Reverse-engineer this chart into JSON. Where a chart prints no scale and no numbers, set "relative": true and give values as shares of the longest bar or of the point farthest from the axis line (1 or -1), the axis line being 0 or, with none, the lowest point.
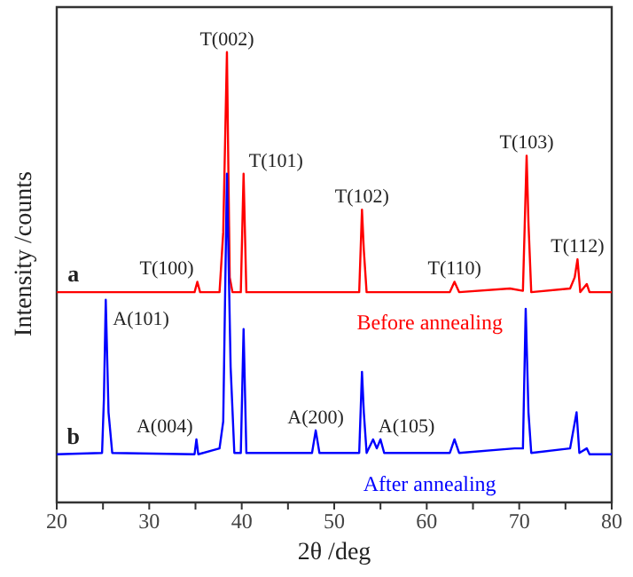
{
  "chart_data": {
    "type": "line",
    "relative": true,
    "xlabel": "2θ /deg",
    "ylabel": "Intensity /counts",
    "xlim": [
      20,
      80
    ],
    "xticks": [
      20,
      {
        "value": 25,
        "label": null
      },
      30,
      {
        "value": 35,
        "label": null
      },
      40,
      {
        "value": 45,
        "label": null
      },
      50,
      {
        "value": 55,
        "label": null
      },
      60,
      {
        "value": 65,
        "label": null
      },
      70,
      {
        "value": 75,
        "label": null
      },
      80
    ],
    "marker": "none",
    "line_style": "solid",
    "series": [
      {
        "name": "Before annealing",
        "color": "#ff0000",
        "x": [
          20,
          25,
          34.9,
          35.2,
          35.5,
          37.6,
          38.0,
          38.4,
          38.7,
          39.0,
          39.9,
          40.2,
          40.5,
          52.7,
          53.0,
          53.2,
          53.5,
          62.5,
          63.0,
          63.5,
          69.0,
          70.4,
          70.8,
          71.0,
          71.3,
          75.5,
          76.0,
          76.3,
          76.6,
          77.3,
          77.6,
          80
        ],
        "values": [
          0.467,
          0.467,
          0.467,
          0.49,
          0.467,
          0.467,
          0.6,
          1.0,
          0.5,
          0.467,
          0.467,
          0.73,
          0.467,
          0.467,
          0.65,
          0.56,
          0.467,
          0.467,
          0.49,
          0.467,
          0.475,
          0.47,
          0.77,
          0.62,
          0.467,
          0.475,
          0.5,
          0.54,
          0.467,
          0.485,
          0.467,
          0.467
        ]
      },
      {
        "name": "After annealing",
        "color": "#0000ff",
        "x": [
          20,
          24.9,
          25.1,
          25.3,
          25.6,
          26,
          34.9,
          35.1,
          35.3,
          37.6,
          38.0,
          38.4,
          38.8,
          39.2,
          39.9,
          40.2,
          40.5,
          47.6,
          48.0,
          48.4,
          52.7,
          53.0,
          53.2,
          53.5,
          54.2,
          54.6,
          55.0,
          55.4,
          62.5,
          63.0,
          63.5,
          69.5,
          70.4,
          70.7,
          71.0,
          71.3,
          75.5,
          76.2,
          76.5,
          77.3,
          77.6,
          80
        ],
        "values": [
          0.107,
          0.11,
          0.23,
          0.45,
          0.2,
          0.11,
          0.107,
          0.14,
          0.107,
          0.12,
          0.18,
          0.73,
          0.3,
          0.11,
          0.11,
          0.385,
          0.11,
          0.11,
          0.16,
          0.11,
          0.11,
          0.29,
          0.2,
          0.11,
          0.14,
          0.12,
          0.14,
          0.11,
          0.11,
          0.14,
          0.11,
          0.12,
          0.12,
          0.43,
          0.2,
          0.11,
          0.12,
          0.2,
          0.11,
          0.12,
          0.107,
          0.107
        ]
      }
    ],
    "annotations": [
      {
        "text": "T(002)",
        "x": 38.4,
        "y": 1.0
      },
      {
        "text": "T(101)",
        "x": 40.2,
        "y": 0.73
      },
      {
        "text": "T(100)",
        "x": 35.2,
        "y": 0.49
      },
      {
        "text": "T(102)",
        "x": 53.0,
        "y": 0.65
      },
      {
        "text": "T(110)",
        "x": 63.0,
        "y": 0.49
      },
      {
        "text": "T(103)",
        "x": 70.8,
        "y": 0.77
      },
      {
        "text": "T(112)",
        "x": 76.3,
        "y": 0.54
      },
      {
        "text": "A(101)",
        "x": 25.3,
        "y": 0.45
      },
      {
        "text": "A(004)",
        "x": 35.1,
        "y": 0.14
      },
      {
        "text": "A(200)",
        "x": 48.0,
        "y": 0.16
      },
      {
        "text": "A(105)",
        "x": 54.2,
        "y": 0.14
      },
      "a",
      "b"
    ]
  }
}
